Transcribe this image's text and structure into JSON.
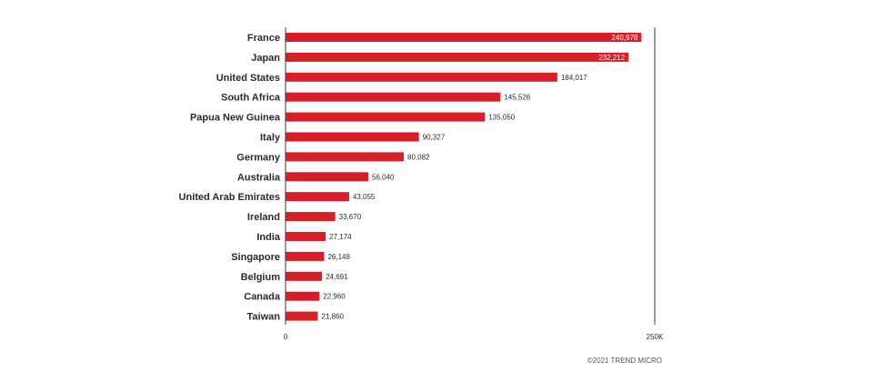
{
  "chart_data": {
    "type": "bar",
    "orientation": "horizontal",
    "categories": [
      "France",
      "Japan",
      "United States",
      "South Africa",
      "Papua New Guinea",
      "Italy",
      "Germany",
      "Australia",
      "United Arab Emirates",
      "Ireland",
      "India",
      "Singapore",
      "Belgium",
      "Canada",
      "Taiwan"
    ],
    "values": [
      240978,
      232212,
      184017,
      145526,
      135050,
      90327,
      80082,
      56040,
      43055,
      33670,
      27174,
      26148,
      24691,
      22960,
      21860
    ],
    "value_labels": [
      "240,978",
      "232,212",
      "184,017",
      "145,526",
      "135,050",
      "90,327",
      "80,082",
      "56,040",
      "43,055",
      "33,670",
      "27,174",
      "26,148",
      "24,691",
      "22,960",
      "21,860"
    ],
    "xlim": [
      0,
      250000
    ],
    "x_tick_labels": [
      "0",
      "250K"
    ],
    "bar_color": "#d61f26",
    "grid": false
  },
  "footer": {
    "copyright": "©2021 TREND MICRO"
  }
}
